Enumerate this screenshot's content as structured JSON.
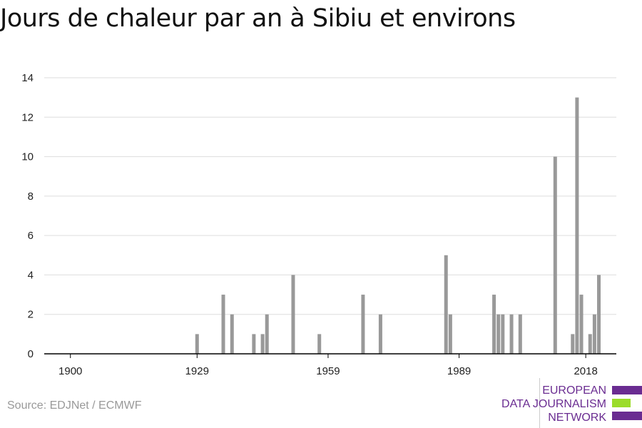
{
  "title": "Jours de chaleur par an à Sibiu et environs",
  "source": "Source: EDJNet / ECMWF",
  "logo": {
    "line1": "EUROPEAN",
    "line2": "DATA JOURNALISM",
    "line3": "NETWORK",
    "colors": {
      "purple": "#6a2c91",
      "green": "#9bdc2a"
    }
  },
  "chart_data": {
    "type": "bar",
    "title": "Jours de chaleur par an à Sibiu et environs",
    "xlabel": "",
    "ylabel": "",
    "ylim": [
      0,
      14
    ],
    "yticks": [
      0,
      2,
      4,
      6,
      8,
      10,
      12,
      14
    ],
    "xlim": [
      1894,
      2025
    ],
    "xticks": [
      "1900",
      "1929",
      "1959",
      "1989",
      "2018"
    ],
    "grid": true,
    "bar_color": "#999999",
    "x": [
      1929,
      1935,
      1937,
      1942,
      1944,
      1945,
      1951,
      1957,
      1967,
      1971,
      1986,
      1987,
      1997,
      1998,
      1999,
      2001,
      2003,
      2011,
      2015,
      2016,
      2017,
      2019,
      2020,
      2021
    ],
    "values": [
      1,
      3,
      2,
      1,
      1,
      2,
      4,
      1,
      3,
      2,
      5,
      2,
      3,
      2,
      2,
      2,
      2,
      10,
      1,
      13,
      3,
      1,
      2,
      4
    ]
  }
}
